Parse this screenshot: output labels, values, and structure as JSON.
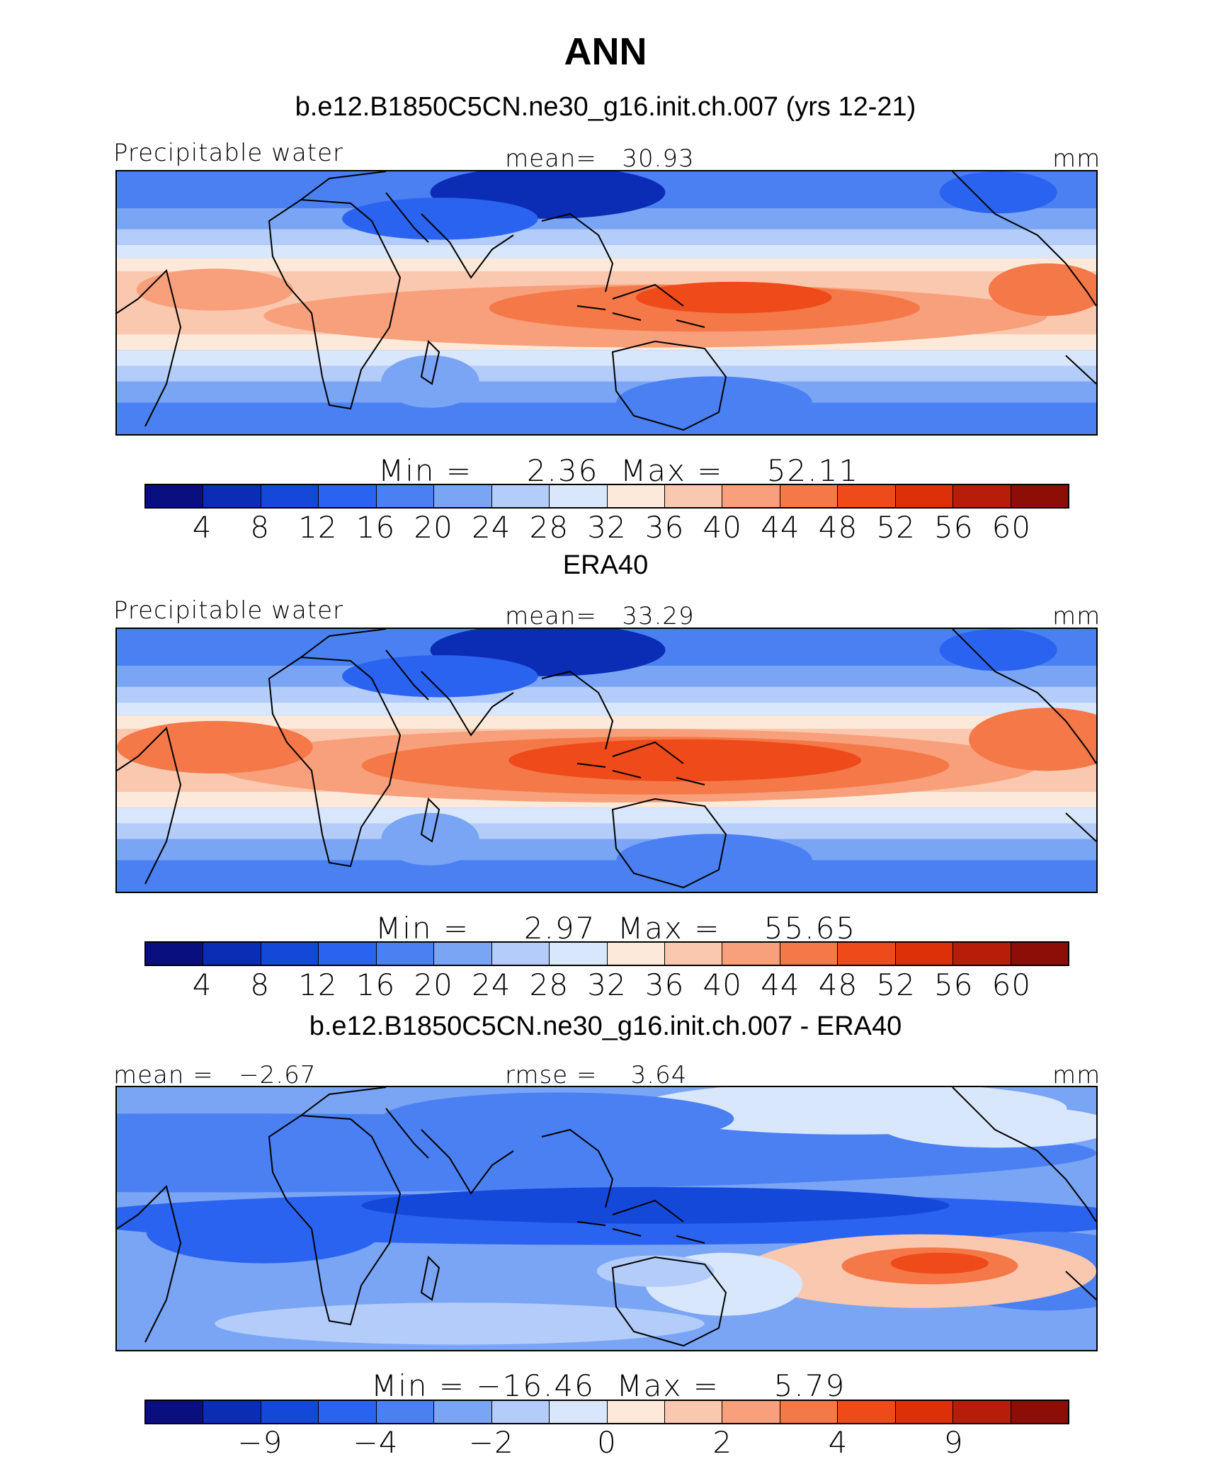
{
  "title": "ANN",
  "units": "mm",
  "colors": {
    "levels": [
      "#0a0f80",
      "#0b2db5",
      "#1448d9",
      "#2a63f0",
      "#4a80f2",
      "#7aa4f4",
      "#b3ccf9",
      "#d8e7fc",
      "#fde9d9",
      "#fac8ae",
      "#f7a07b",
      "#f47848",
      "#ef4a1a",
      "#dd2f08",
      "#b81d0a",
      "#8c0e06"
    ]
  },
  "chart_data": [
    {
      "type": "heatmap",
      "panel_title": "b.e12.B1850C5CN.ne30_g16.init.ch.007 (yrs 12-21)",
      "variable": "Precipitable water",
      "stat_left": "",
      "stat_center": "mean=   30.93",
      "units": "mm",
      "min_max": "Min =     2.36  Max =    52.11",
      "min": 2.36,
      "max": 52.11,
      "mean": 30.93,
      "colorbar_ticks": [
        "4",
        "8",
        "12",
        "16",
        "20",
        "24",
        "28",
        "32",
        "36",
        "40",
        "44",
        "48",
        "52",
        "56",
        "60"
      ],
      "tropical_peak": 52.11
    },
    {
      "type": "heatmap",
      "panel_title": "ERA40",
      "variable": "Precipitable water",
      "stat_left": "",
      "stat_center": "mean=   33.29",
      "units": "mm",
      "min_max": "Min =     2.97  Max =    55.65",
      "min": 2.97,
      "max": 55.65,
      "mean": 33.29,
      "colorbar_ticks": [
        "4",
        "8",
        "12",
        "16",
        "20",
        "24",
        "28",
        "32",
        "36",
        "40",
        "44",
        "48",
        "52",
        "56",
        "60"
      ],
      "tropical_peak": 55.65
    },
    {
      "type": "heatmap",
      "panel_title": "b.e12.B1850C5CN.ne30_g16.init.ch.007 - ERA40",
      "variable": "",
      "stat_left": "mean =   −2.67",
      "stat_center": "rmse =    3.64",
      "units": "mm",
      "min_max": "Min = −16.46  Max =     5.79",
      "min": -16.46,
      "max": 5.79,
      "mean": -2.67,
      "rmse": 3.64,
      "colorbar_ticks": [
        "−9",
        "−4",
        "−2",
        "0",
        "2",
        "4",
        "9"
      ]
    }
  ]
}
